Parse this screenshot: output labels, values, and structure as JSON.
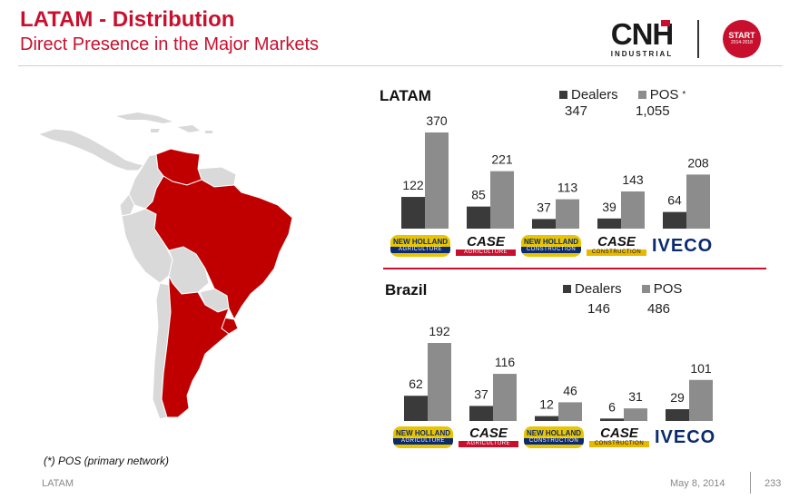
{
  "header": {
    "title": "LATAM - Distribution",
    "subtitle": "Direct Presence in the Major Markets",
    "logo_text": "CNH",
    "logo_subtext": "INDUSTRIAL",
    "badge_text": "START",
    "badge_years": "2014-2018"
  },
  "brands": [
    {
      "name": "NEW HOLLAND",
      "sub": "AGRICULTURE",
      "style": "nh"
    },
    {
      "name": "CASE",
      "sub": "AGRICULTURE",
      "style": "caseih"
    },
    {
      "name": "NEW HOLLAND",
      "sub": "CONSTRUCTION",
      "style": "nh"
    },
    {
      "name": "CASE",
      "sub": "CONSTRUCTION",
      "style": "casece"
    },
    {
      "name": "IVECO",
      "sub": "",
      "style": "iveco"
    }
  ],
  "colors": {
    "dealers": "#3a3a3a",
    "pos": "#8c8c8c",
    "accent": "#c8102e",
    "map_highlight": "#c00000",
    "map_land": "#d9d9d9"
  },
  "chart_data": [
    {
      "type": "bar",
      "title": "LATAM",
      "categories": [
        "New Holland Agriculture",
        "Case IH Agriculture",
        "New Holland Construction",
        "Case Construction",
        "Iveco"
      ],
      "series": [
        {
          "name": "Dealers",
          "values": [
            122,
            85,
            37,
            39,
            64
          ]
        },
        {
          "name": "POS",
          "values": [
            370,
            221,
            113,
            143,
            208
          ]
        }
      ],
      "totals": {
        "Dealers": "347",
        "POS": "1,055"
      },
      "pos_marker": "*",
      "ylim": [
        0,
        370
      ]
    },
    {
      "type": "bar",
      "title": "Brazil",
      "categories": [
        "New Holland Agriculture",
        "Case IH Agriculture",
        "New Holland Construction",
        "Case Construction",
        "Iveco"
      ],
      "series": [
        {
          "name": "Dealers",
          "values": [
            62,
            37,
            12,
            6,
            29
          ]
        },
        {
          "name": "POS",
          "values": [
            192,
            116,
            46,
            31,
            101
          ]
        }
      ],
      "totals": {
        "Dealers": "146",
        "POS": "486"
      },
      "ylim": [
        0,
        192
      ]
    }
  ],
  "footnote": "(*) POS (primary network)",
  "footer": {
    "left": "LATAM",
    "date": "May 8, 2014",
    "page": "233"
  }
}
